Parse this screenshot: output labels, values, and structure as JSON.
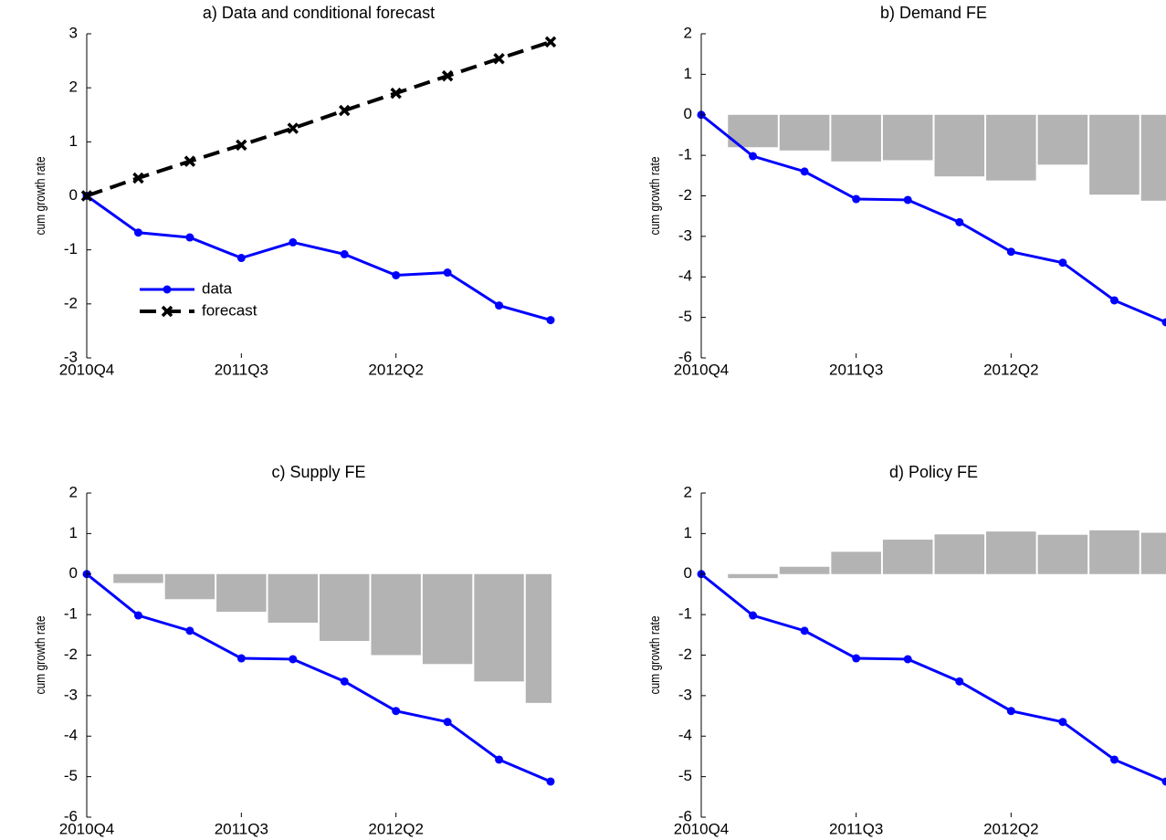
{
  "chart_data": [
    {
      "type": "line",
      "title": "a) Data and conditional forecast",
      "ylabel": "cum growth rate",
      "categories": [
        "2010Q4",
        null,
        null,
        "2011Q3",
        null,
        null,
        "2012Q2",
        null,
        null,
        null
      ],
      "ylim": [
        -3,
        3
      ],
      "yticks": [
        -3,
        -2,
        -1,
        0,
        1,
        2,
        3
      ],
      "legend": "lower-left",
      "series": [
        {
          "name": "data",
          "color": "#0000ff",
          "marker": "o",
          "dash": false,
          "values": [
            0,
            -0.68,
            -0.77,
            -1.15,
            -0.86,
            -1.08,
            -1.47,
            -1.42,
            -2.03,
            -2.3
          ]
        },
        {
          "name": "forecast",
          "color": "#000000",
          "marker": "x",
          "dash": true,
          "values": [
            0,
            0.33,
            0.64,
            0.94,
            1.25,
            1.58,
            1.9,
            2.22,
            2.54,
            2.85
          ]
        }
      ]
    },
    {
      "type": "bar",
      "title": "b) Demand FE",
      "ylabel": "cum growth rate",
      "categories": [
        "2010Q4",
        null,
        null,
        "2011Q3",
        null,
        null,
        "2012Q2",
        null,
        null,
        null
      ],
      "ylim": [
        -6,
        2
      ],
      "yticks": [
        -6,
        -5,
        -4,
        -3,
        -2,
        -1,
        0,
        1,
        2
      ],
      "bars": {
        "color": "#b3b3b3",
        "values": [
          0,
          -0.8,
          -0.88,
          -1.15,
          -1.12,
          -1.52,
          -1.62,
          -1.23,
          -1.97,
          -2.12
        ]
      },
      "series": [
        {
          "color": "#0000ff",
          "marker": "o",
          "dash": false,
          "values": [
            0,
            -1.02,
            -1.4,
            -2.08,
            -2.1,
            -2.65,
            -3.38,
            -3.65,
            -4.58,
            -5.12
          ]
        }
      ]
    },
    {
      "type": "bar",
      "title": "c) Supply FE",
      "ylabel": "cum growth rate",
      "categories": [
        "2010Q4",
        null,
        null,
        "2011Q3",
        null,
        null,
        "2012Q2",
        null,
        null,
        null
      ],
      "ylim": [
        -6,
        2
      ],
      "yticks": [
        -6,
        -5,
        -4,
        -3,
        -2,
        -1,
        0,
        1,
        2
      ],
      "bars": {
        "color": "#b3b3b3",
        "values": [
          0,
          -0.22,
          -0.62,
          -0.93,
          -1.2,
          -1.65,
          -2.0,
          -2.22,
          -2.65,
          -3.18
        ]
      },
      "series": [
        {
          "color": "#0000ff",
          "marker": "o",
          "dash": false,
          "values": [
            0,
            -1.02,
            -1.4,
            -2.08,
            -2.1,
            -2.65,
            -3.38,
            -3.65,
            -4.58,
            -5.12
          ]
        }
      ]
    },
    {
      "type": "bar",
      "title": "d) Policy FE",
      "ylabel": "cum growth rate",
      "categories": [
        "2010Q4",
        null,
        null,
        "2011Q3",
        null,
        null,
        "2012Q2",
        null,
        null,
        null
      ],
      "ylim": [
        -6,
        2
      ],
      "yticks": [
        -6,
        -5,
        -4,
        -3,
        -2,
        -1,
        0,
        1,
        2
      ],
      "bars": {
        "color": "#b3b3b3",
        "values": [
          0,
          -0.1,
          0.18,
          0.55,
          0.85,
          0.98,
          1.05,
          0.97,
          1.08,
          1.02
        ]
      },
      "series": [
        {
          "color": "#0000ff",
          "marker": "o",
          "dash": false,
          "values": [
            0,
            -1.02,
            -1.4,
            -2.08,
            -2.1,
            -2.65,
            -3.38,
            -3.65,
            -4.58,
            -5.12
          ]
        }
      ]
    }
  ]
}
